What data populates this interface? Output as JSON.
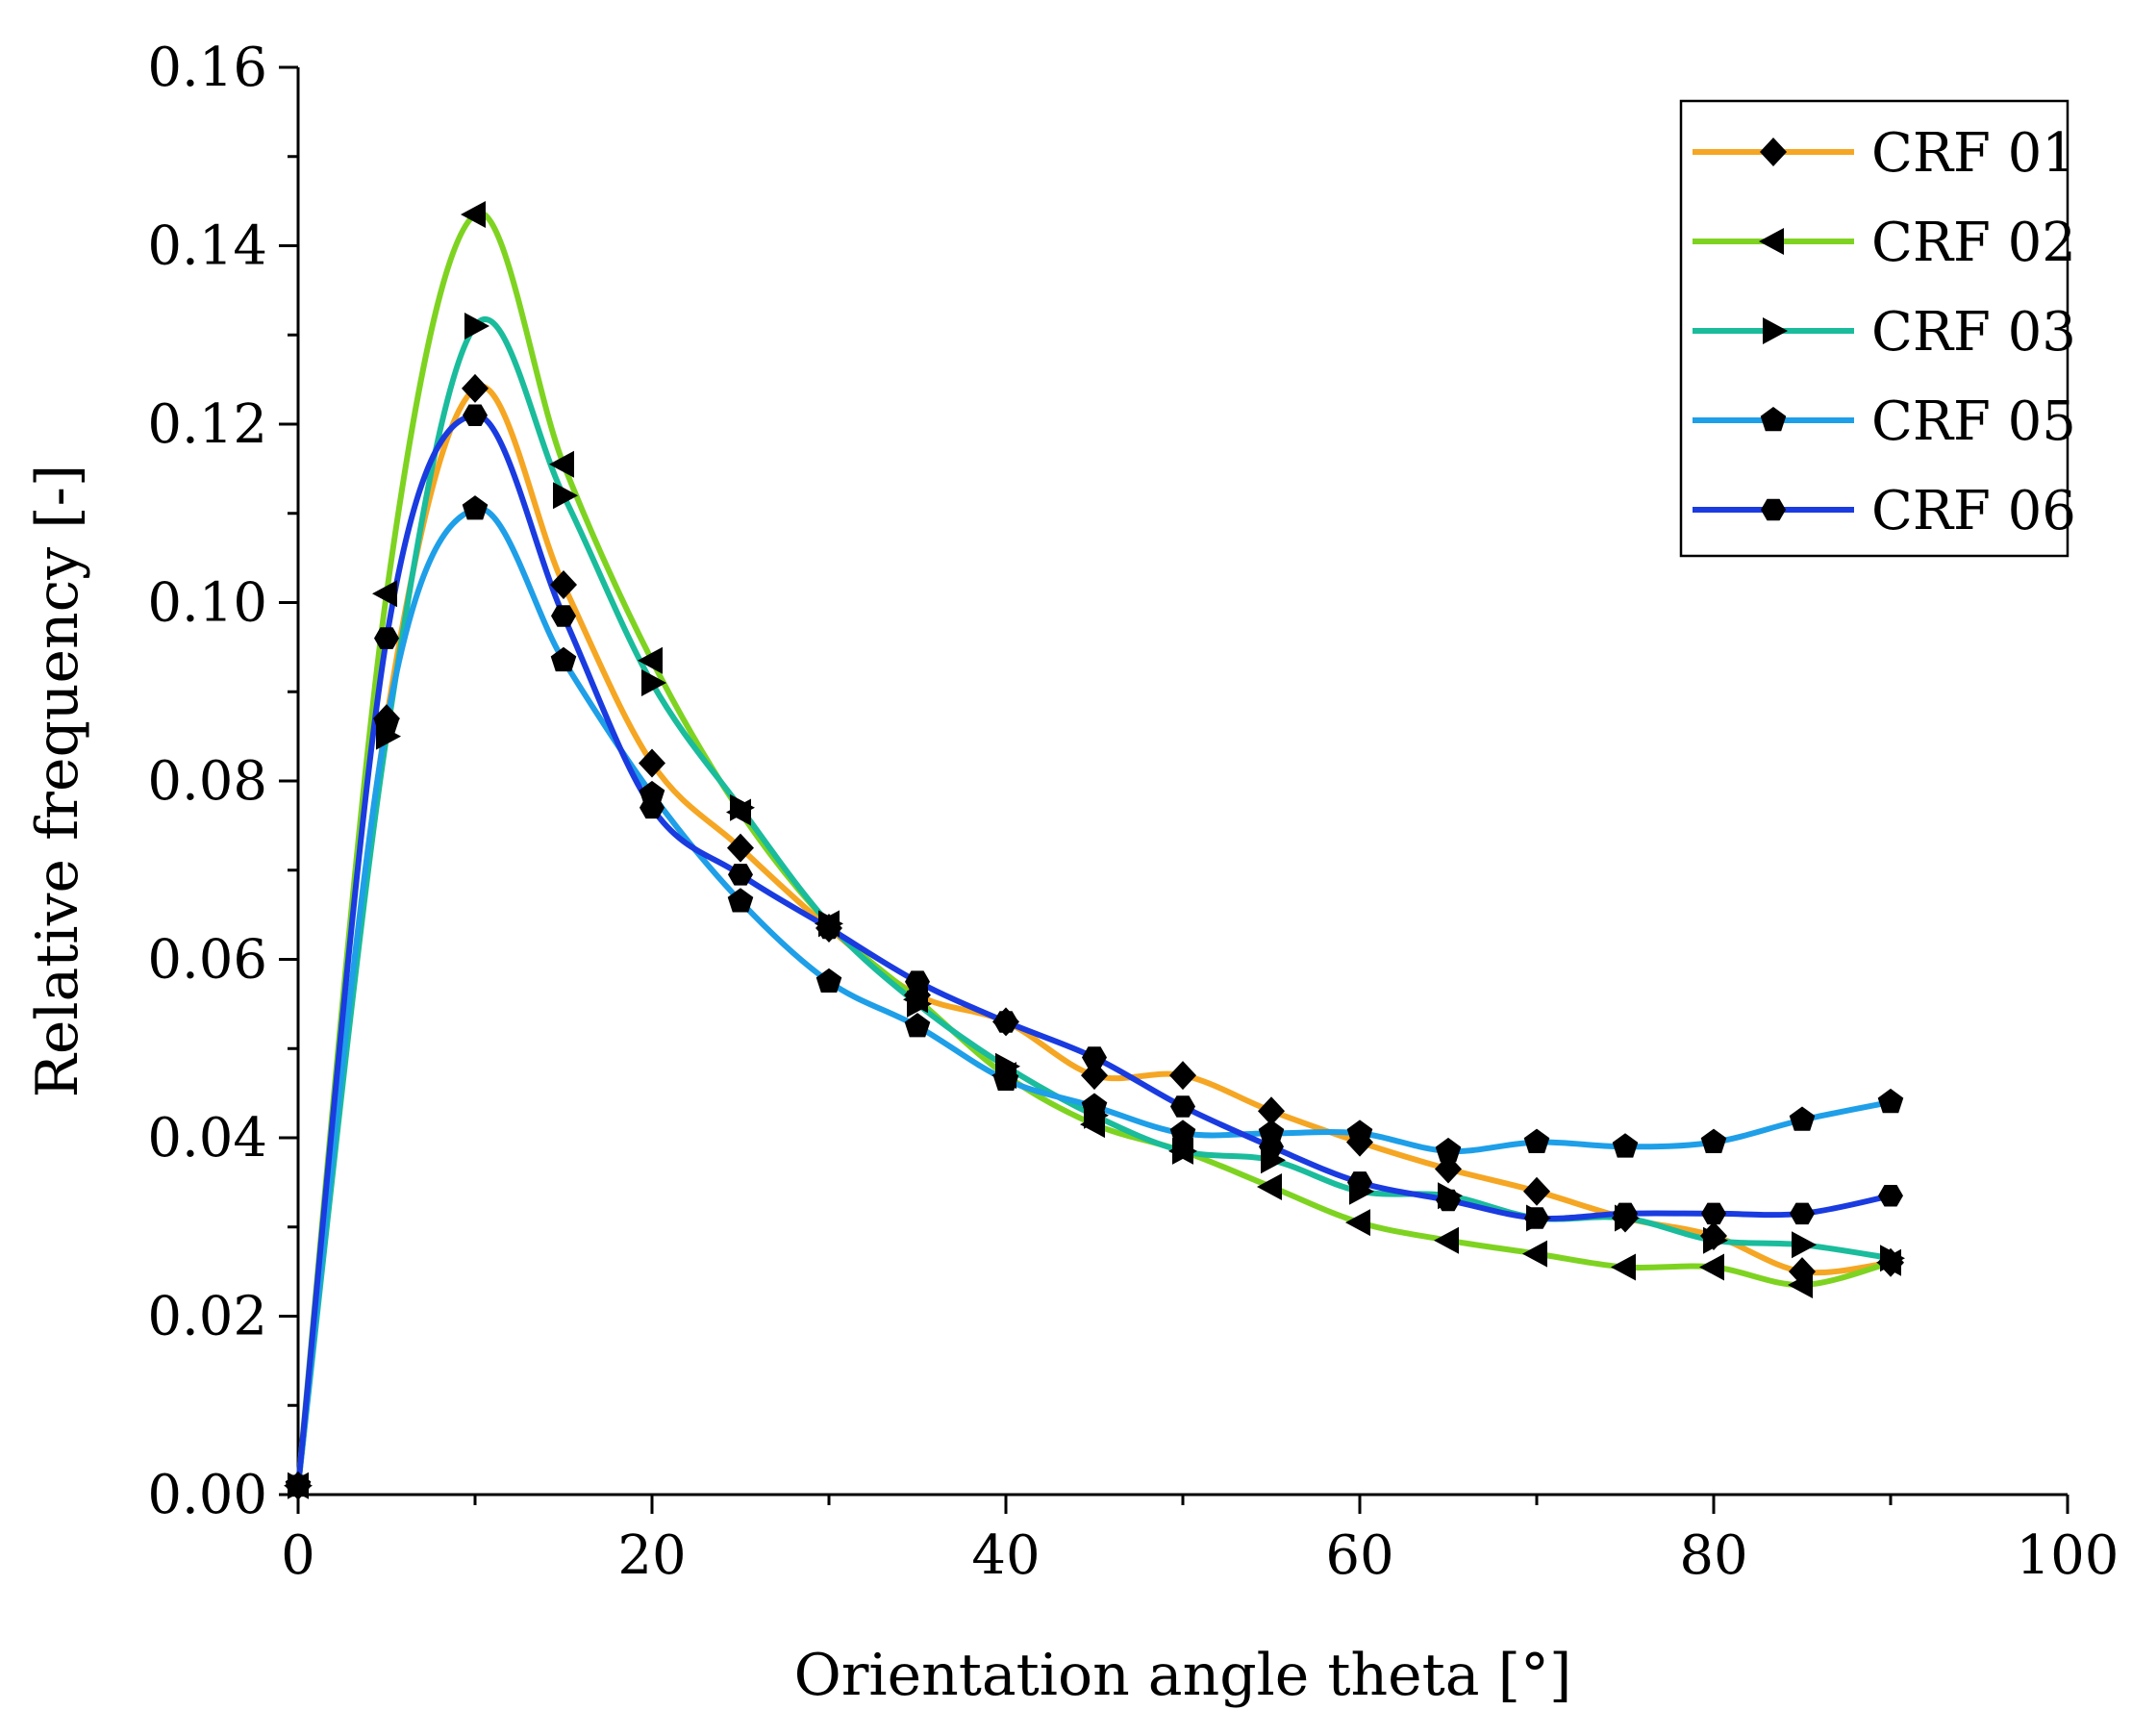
{
  "chart_data": {
    "type": "line",
    "title": "",
    "xlabel": "Orientation angle theta [°]",
    "ylabel": "Relative frequency [-]",
    "xlim": [
      0,
      100
    ],
    "ylim": [
      0,
      0.16
    ],
    "xticks": [
      0,
      20,
      40,
      60,
      80,
      100
    ],
    "xtick_labels": [
      "0",
      "20",
      "40",
      "60",
      "80",
      "100"
    ],
    "yticks": [
      0,
      0.02,
      0.04,
      0.06,
      0.08,
      0.1,
      0.12,
      0.14,
      0.16
    ],
    "ytick_labels": [
      "0.00",
      "0.02",
      "0.04",
      "0.06",
      "0.08",
      "0.10",
      "0.12",
      "0.14",
      "0.16"
    ],
    "grid": false,
    "legend_position": "top-right",
    "x": [
      0,
      5,
      10,
      15,
      20,
      25,
      30,
      35,
      40,
      45,
      50,
      55,
      60,
      65,
      70,
      75,
      80,
      85,
      90
    ],
    "series": [
      {
        "name": "CRF 01",
        "color": "#F5A623",
        "marker": "diamond",
        "values": [
          0.001,
          0.087,
          0.124,
          0.102,
          0.082,
          0.0725,
          0.0635,
          0.056,
          0.053,
          0.047,
          0.047,
          0.043,
          0.0395,
          0.0365,
          0.034,
          0.031,
          0.029,
          0.025,
          0.026
        ]
      },
      {
        "name": "CRF 02",
        "color": "#7ED321",
        "marker": "triangle-left",
        "values": [
          0.001,
          0.101,
          0.1435,
          0.1155,
          0.0935,
          0.0765,
          0.064,
          0.0555,
          0.047,
          0.0415,
          0.0385,
          0.0345,
          0.0305,
          0.0285,
          0.027,
          0.0255,
          0.0255,
          0.0235,
          0.026
        ]
      },
      {
        "name": "CRF 03",
        "color": "#1ABC9C",
        "marker": "triangle-right",
        "values": [
          0.001,
          0.085,
          0.131,
          0.112,
          0.091,
          0.077,
          0.064,
          0.055,
          0.048,
          0.0425,
          0.0385,
          0.0375,
          0.034,
          0.0335,
          0.031,
          0.031,
          0.0285,
          0.028,
          0.0265
        ]
      },
      {
        "name": "CRF 05",
        "color": "#1E9FE8",
        "marker": "pentagon",
        "values": [
          0.001,
          0.0865,
          0.1105,
          0.0935,
          0.0785,
          0.0665,
          0.0575,
          0.0525,
          0.0465,
          0.0435,
          0.0405,
          0.0405,
          0.0405,
          0.0385,
          0.0395,
          0.039,
          0.0395,
          0.042,
          0.044
        ]
      },
      {
        "name": "CRF 06",
        "color": "#1A3BE0",
        "marker": "hexagon",
        "values": [
          0.001,
          0.096,
          0.121,
          0.0985,
          0.077,
          0.0695,
          0.0635,
          0.0575,
          0.053,
          0.049,
          0.0435,
          0.039,
          0.035,
          0.033,
          0.031,
          0.0315,
          0.0315,
          0.0315,
          0.0335
        ]
      }
    ]
  }
}
